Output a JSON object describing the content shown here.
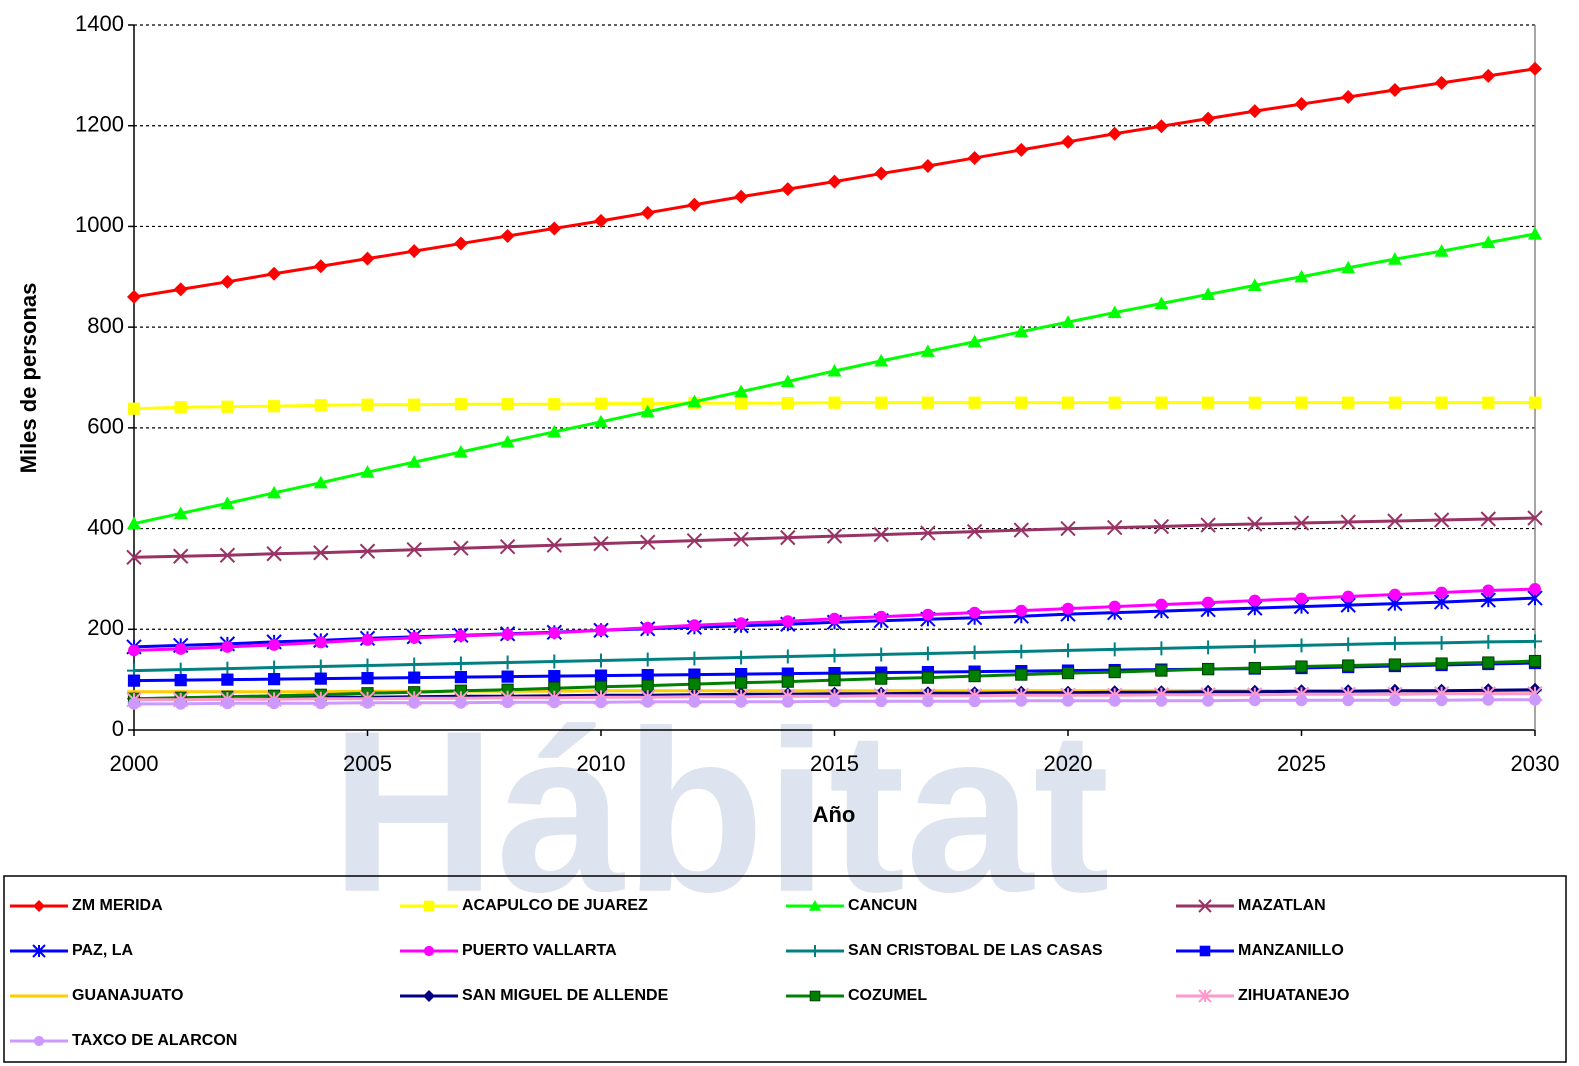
{
  "chart_data": {
    "type": "line",
    "watermark": "Hábitat",
    "xlabel": "Año",
    "ylabel": "Miles de personas",
    "x": [
      2000,
      2001,
      2002,
      2003,
      2004,
      2005,
      2006,
      2007,
      2008,
      2009,
      2010,
      2011,
      2012,
      2013,
      2014,
      2015,
      2016,
      2017,
      2018,
      2019,
      2020,
      2021,
      2022,
      2023,
      2024,
      2025,
      2026,
      2027,
      2028,
      2029,
      2030
    ],
    "xlim": [
      2000,
      2030
    ],
    "xticks": [
      2000,
      2005,
      2010,
      2015,
      2020,
      2025,
      2030
    ],
    "ylim": [
      0,
      1400
    ],
    "yticks": [
      0,
      200,
      400,
      600,
      800,
      1000,
      1200,
      1400
    ],
    "grid": true,
    "legend": "bottom",
    "series": [
      {
        "name": "ZM MERIDA",
        "color": "#ff0000",
        "marker": "diamond",
        "values": [
          860,
          875,
          890,
          906,
          921,
          936,
          951,
          966,
          981,
          996,
          1011,
          1027,
          1043,
          1059,
          1074,
          1089,
          1105,
          1120,
          1136,
          1152,
          1168,
          1184,
          1199,
          1214,
          1229,
          1243,
          1257,
          1271,
          1285,
          1299,
          1313
        ]
      },
      {
        "name": "ACAPULCO DE JUAREZ",
        "color": "#ffff00",
        "marker": "square",
        "values": [
          638,
          641,
          642,
          643,
          645,
          646,
          646,
          647,
          647,
          647,
          648,
          648,
          649,
          649,
          649,
          650,
          650,
          650,
          650,
          650,
          650,
          650,
          650,
          650,
          650,
          650,
          650,
          650,
          650,
          650,
          650
        ]
      },
      {
        "name": "CANCUN",
        "color": "#00ff00",
        "marker": "triangle",
        "values": [
          410,
          430,
          450,
          471,
          491,
          512,
          532,
          552,
          572,
          592,
          612,
          632,
          652,
          672,
          692,
          713,
          733,
          752,
          771,
          791,
          810,
          829,
          847,
          865,
          883,
          900,
          918,
          935,
          951,
          968,
          985
        ]
      },
      {
        "name": "MAZATLAN",
        "color": "#993366",
        "marker": "x",
        "values": [
          343,
          345,
          347,
          350,
          352,
          355,
          358,
          361,
          364,
          367,
          370,
          373,
          376,
          379,
          382,
          385,
          388,
          391,
          394,
          397,
          400,
          402,
          404,
          407,
          409,
          411,
          413,
          415,
          417,
          419,
          421
        ]
      },
      {
        "name": "PAZ, LA",
        "color": "#0000ff",
        "marker": "asterisk",
        "values": [
          165,
          168,
          171,
          175,
          178,
          182,
          185,
          188,
          191,
          194,
          198,
          201,
          204,
          207,
          210,
          214,
          217,
          220,
          223,
          226,
          230,
          233,
          236,
          239,
          242,
          245,
          248,
          251,
          254,
          258,
          262
        ]
      },
      {
        "name": "PUERTO VALLARTA",
        "color": "#ff00ff",
        "marker": "circle",
        "values": [
          158,
          161,
          165,
          169,
          174,
          179,
          183,
          187,
          190,
          193,
          198,
          203,
          208,
          212,
          216,
          221,
          225,
          229,
          233,
          237,
          241,
          245,
          249,
          253,
          257,
          261,
          265,
          269,
          273,
          277,
          280
        ]
      },
      {
        "name": "SAN CRISTOBAL DE LAS CASAS",
        "color": "#008080",
        "marker": "plus",
        "values": [
          118,
          120,
          122,
          124,
          126,
          128,
          130,
          132,
          134,
          136,
          138,
          140,
          142,
          144,
          146,
          148,
          150,
          152,
          154,
          156,
          158,
          160,
          162,
          164,
          166,
          168,
          170,
          172,
          173,
          175,
          176
        ]
      },
      {
        "name": "MANZANILLO",
        "color": "#0000ff",
        "marker": "square",
        "values": [
          98,
          99,
          100,
          101,
          102,
          103,
          104,
          105,
          106,
          107,
          108,
          109,
          110,
          111,
          112,
          113,
          114,
          115,
          116,
          117,
          118,
          119,
          120,
          121,
          122,
          123,
          125,
          127,
          129,
          131,
          133
        ]
      },
      {
        "name": "GUANAJUATO",
        "color": "#ffcc00",
        "marker": "dash",
        "values": [
          76,
          76,
          76,
          76,
          76,
          77,
          77,
          77,
          77,
          77,
          78,
          78,
          78,
          78,
          78,
          78,
          78,
          78,
          78,
          78,
          78,
          78,
          78,
          78,
          78,
          78,
          78,
          78,
          78,
          78,
          78
        ]
      },
      {
        "name": "SAN MIGUEL DE ALLENDE",
        "color": "#000080",
        "marker": "diamond",
        "values": [
          62,
          63,
          63,
          64,
          65,
          65,
          66,
          67,
          67,
          68,
          69,
          69,
          70,
          71,
          71,
          72,
          72,
          73,
          73,
          74,
          74,
          75,
          75,
          76,
          76,
          77,
          77,
          78,
          78,
          79,
          80
        ]
      },
      {
        "name": "COZUMEL",
        "color": "#008000",
        "marker": "square",
        "values": [
          62,
          64,
          66,
          68,
          70,
          73,
          75,
          78,
          80,
          83,
          86,
          88,
          91,
          94,
          96,
          99,
          102,
          104,
          107,
          110,
          113,
          115,
          118,
          121,
          123,
          126,
          128,
          130,
          132,
          134,
          137
        ]
      },
      {
        "name": "ZIHUATANEJO",
        "color": "#ff99cc",
        "marker": "asterisk",
        "values": [
          60,
          60,
          61,
          61,
          62,
          62,
          63,
          63,
          64,
          64,
          65,
          65,
          66,
          66,
          67,
          67,
          68,
          68,
          68,
          69,
          69,
          69,
          70,
          70,
          70,
          71,
          71,
          71,
          72,
          72,
          72
        ]
      },
      {
        "name": "TAXCO DE ALARCON",
        "color": "#cc99ff",
        "marker": "circle",
        "values": [
          52,
          52,
          53,
          53,
          53,
          54,
          54,
          54,
          55,
          55,
          55,
          56,
          56,
          56,
          56,
          57,
          57,
          57,
          57,
          58,
          58,
          58,
          58,
          58,
          59,
          59,
          59,
          59,
          59,
          60,
          60
        ]
      }
    ]
  }
}
